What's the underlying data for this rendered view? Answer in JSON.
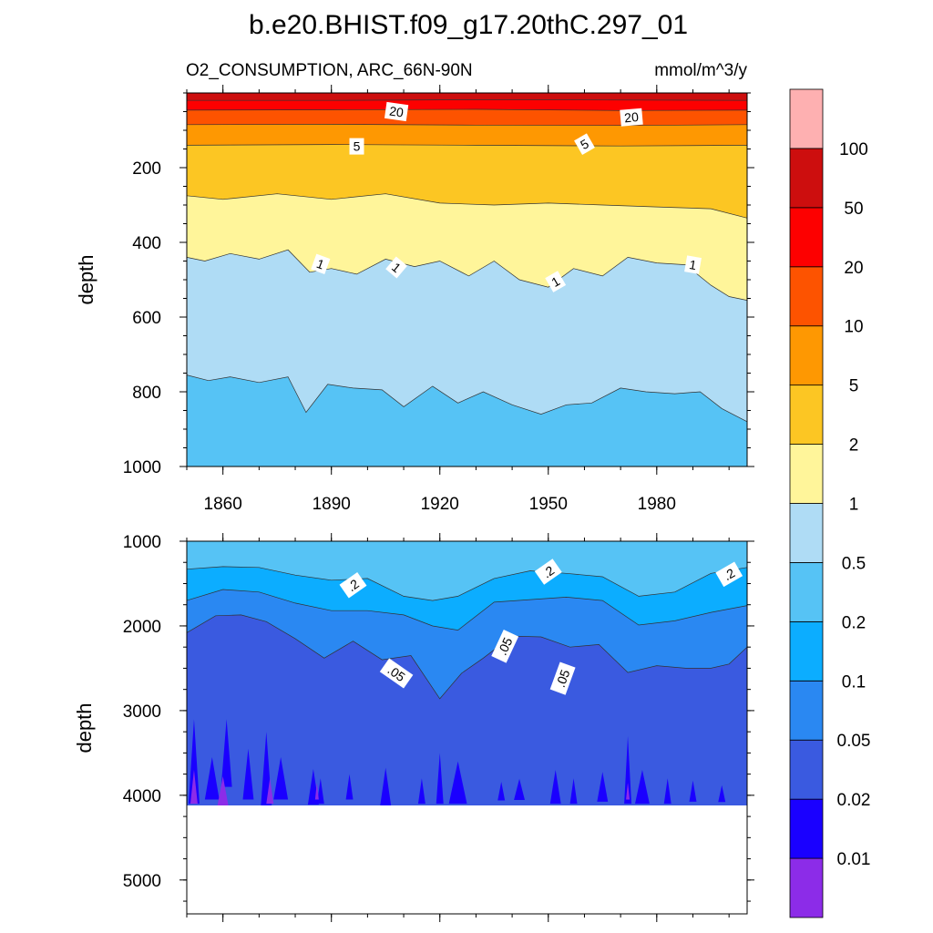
{
  "chart_data": {
    "type": "filled-contour",
    "title": "b.e20.BHIST.f09_g17.20thC.297_01",
    "subtitle_left": "O2_CONSUMPTION, ARC_66N-90N",
    "subtitle_right": "mmol/m^3/y",
    "xlim": [
      1850,
      2005
    ],
    "x_ticks": [
      1860,
      1890,
      1920,
      1950,
      1980
    ],
    "x_tick_labels": [
      "1860",
      "1890",
      "1920",
      "1950",
      "1980"
    ],
    "colorbar": {
      "colors": [
        "#8c2ce8",
        "#1a00ff",
        "#3a5ae0",
        "#2a88f2",
        "#0cadff",
        "#56c3f5",
        "#afdcf5",
        "#fff59a",
        "#fcc623",
        "#fe9802",
        "#fd5300",
        "#fd0000",
        "#cd0e0e",
        "#feb0b1"
      ],
      "levels": [
        "0.01",
        "0.02",
        "0.05",
        "0.1",
        "0.2",
        "0.5",
        "1",
        "2",
        "5",
        "10",
        "20",
        "50",
        "100"
      ]
    },
    "panels": [
      {
        "ylabel": "depth",
        "ylim": [
          0,
          1000
        ],
        "y_ticks": [
          200,
          400,
          600,
          800,
          1000
        ],
        "y_tick_labels": [
          "200",
          "400",
          "600",
          "800",
          "1000"
        ],
        "bottom_fill": "#56c3f5",
        "bands": [
          {
            "level": 50,
            "fill": "#fd0000",
            "years": [
              1850,
              1890,
              1930,
              1970,
              2005
            ],
            "depths": [
              20,
              20,
              18,
              19,
              20
            ]
          },
          {
            "level": 20,
            "fill": "#fd5300",
            "years": [
              1850,
              1890,
              1930,
              1970,
              2005
            ],
            "depths": [
              46,
              45,
              44,
              47,
              46
            ]
          },
          {
            "level": 10,
            "fill": "#fe9802",
            "years": [
              1850,
              1890,
              1930,
              1970,
              2005
            ],
            "depths": [
              85,
              84,
              86,
              87,
              85
            ]
          },
          {
            "level": 5,
            "fill": "#fcc623",
            "years": [
              1850,
              1890,
              1930,
              1970,
              2005
            ],
            "depths": [
              140,
              138,
              140,
              142,
              140
            ]
          },
          {
            "level": 2,
            "fill": "#fff59a",
            "years": [
              1850,
              1860,
              1875,
              1890,
              1905,
              1920,
              1935,
              1950,
              1965,
              1980,
              1995,
              2005
            ],
            "depths": [
              275,
              285,
              270,
              285,
              270,
              295,
              300,
              295,
              300,
              305,
              310,
              335
            ]
          },
          {
            "level": 1,
            "fill": "#afdcf5",
            "years": [
              1850,
              1855,
              1862,
              1870,
              1878,
              1884,
              1890,
              1897,
              1905,
              1913,
              1920,
              1928,
              1935,
              1942,
              1950,
              1957,
              1965,
              1972,
              1980,
              1988,
              1995,
              2000,
              2005
            ],
            "depths": [
              440,
              450,
              430,
              445,
              420,
              480,
              470,
              485,
              445,
              465,
              450,
              490,
              450,
              500,
              520,
              470,
              490,
              440,
              455,
              460,
              515,
              545,
              555
            ]
          },
          {
            "level": 0.5,
            "fill": "#56c3f5",
            "years": [
              1850,
              1856,
              1862,
              1870,
              1878,
              1883,
              1889,
              1896,
              1904,
              1910,
              1918,
              1925,
              1932,
              1940,
              1948,
              1955,
              1962,
              1970,
              1977,
              1985,
              1992,
              1998,
              2005
            ],
            "depths": [
              755,
              770,
              760,
              775,
              760,
              855,
              780,
              790,
              795,
              840,
              785,
              830,
              800,
              835,
              860,
              835,
              830,
              790,
              800,
              805,
              800,
              845,
              880
            ]
          }
        ],
        "labels": [
          {
            "text": "20",
            "year": 1908,
            "depth": 50,
            "angle": 8
          },
          {
            "text": "20",
            "year": 1973,
            "depth": 65,
            "angle": -5
          },
          {
            "text": "5",
            "year": 1897,
            "depth": 143,
            "angle": 0
          },
          {
            "text": "5",
            "year": 1960,
            "depth": 137,
            "angle": -30
          },
          {
            "text": "1",
            "year": 1887,
            "depth": 458,
            "angle": 20
          },
          {
            "text": "1",
            "year": 1908,
            "depth": 467,
            "angle": 40
          },
          {
            "text": "1",
            "year": 1952,
            "depth": 505,
            "angle": -30
          },
          {
            "text": "1",
            "year": 1990,
            "depth": 460,
            "angle": 10
          }
        ]
      },
      {
        "ylabel": "depth",
        "ylim": [
          1000,
          5400
        ],
        "y_ticks": [
          1000,
          2000,
          3000,
          4000,
          5000
        ],
        "y_tick_labels": [
          "1000",
          "2000",
          "3000",
          "4000",
          "5000"
        ],
        "bottom_depth": 4120,
        "bottom_fill": "#3a5ae0",
        "top_fill": "#56c3f5",
        "bands": [
          {
            "level": 0.2,
            "fill": "#0cadff",
            "years": [
              1850,
              1860,
              1870,
              1880,
              1890,
              1900,
              1910,
              1918,
              1925,
              1935,
              1945,
              1955,
              1965,
              1975,
              1985,
              1995,
              2005
            ],
            "depths": [
              1330,
              1300,
              1310,
              1400,
              1460,
              1440,
              1650,
              1700,
              1650,
              1440,
              1350,
              1380,
              1420,
              1650,
              1600,
              1380,
              1310
            ]
          },
          {
            "level": 0.1,
            "fill": "#2a88f2",
            "years": [
              1850,
              1860,
              1870,
              1880,
              1890,
              1900,
              1910,
              1918,
              1925,
              1935,
              1945,
              1955,
              1965,
              1975,
              1985,
              1995,
              2005
            ],
            "depths": [
              1700,
              1570,
              1600,
              1730,
              1820,
              1820,
              1870,
              2000,
              2050,
              1720,
              1690,
              1660,
              1700,
              1990,
              1940,
              1840,
              1760
            ]
          },
          {
            "level": 0.05,
            "fill": "#3a5ae0",
            "years": [
              1850,
              1858,
              1865,
              1872,
              1880,
              1888,
              1896,
              1904,
              1912,
              1920,
              1926,
              1932,
              1940,
              1948,
              1956,
              1964,
              1972,
              1980,
              1988,
              1995,
              2000,
              2005
            ],
            "depths": [
              2080,
              1880,
              1870,
              1950,
              2150,
              2380,
              2180,
              2400,
              2350,
              2860,
              2560,
              2380,
              2120,
              2130,
              2250,
              2220,
              2550,
              2470,
              2500,
              2500,
              2450,
              2250
            ]
          }
        ],
        "blobs": [
          {
            "year": 1852,
            "depth": 3600,
            "w": 3,
            "h": 1000,
            "fill": "#1a00ff"
          },
          {
            "year": 1857,
            "depth": 3800,
            "w": 4,
            "h": 500,
            "fill": "#1a00ff"
          },
          {
            "year": 1861,
            "depth": 3500,
            "w": 3,
            "h": 800,
            "fill": "#1a00ff"
          },
          {
            "year": 1867,
            "depth": 3750,
            "w": 3,
            "h": 600,
            "fill": "#1a00ff"
          },
          {
            "year": 1872,
            "depth": 3700,
            "w": 3,
            "h": 900,
            "fill": "#1a00ff"
          },
          {
            "year": 1876,
            "depth": 3800,
            "w": 4,
            "h": 500,
            "fill": "#1a00ff"
          },
          {
            "year": 1885,
            "depth": 3900,
            "w": 3,
            "h": 420,
            "fill": "#1a00ff"
          },
          {
            "year": 1887,
            "depth": 3950,
            "w": 2,
            "h": 300,
            "fill": "#1a00ff"
          },
          {
            "year": 1895,
            "depth": 3900,
            "w": 2,
            "h": 300,
            "fill": "#1a00ff"
          },
          {
            "year": 1905,
            "depth": 3900,
            "w": 3,
            "h": 450,
            "fill": "#1a00ff"
          },
          {
            "year": 1915,
            "depth": 3950,
            "w": 2,
            "h": 300,
            "fill": "#1a00ff"
          },
          {
            "year": 1920,
            "depth": 3800,
            "w": 2,
            "h": 600,
            "fill": "#1a00ff"
          },
          {
            "year": 1925,
            "depth": 3850,
            "w": 5,
            "h": 500,
            "fill": "#1a00ff"
          },
          {
            "year": 1937,
            "depth": 3950,
            "w": 2,
            "h": 220,
            "fill": "#1a00ff"
          },
          {
            "year": 1942,
            "depth": 3930,
            "w": 3,
            "h": 250,
            "fill": "#1a00ff"
          },
          {
            "year": 1952,
            "depth": 3900,
            "w": 3,
            "h": 400,
            "fill": "#1a00ff"
          },
          {
            "year": 1957,
            "depth": 3950,
            "w": 2,
            "h": 300,
            "fill": "#1a00ff"
          },
          {
            "year": 1965,
            "depth": 3900,
            "w": 3,
            "h": 350,
            "fill": "#1a00ff"
          },
          {
            "year": 1972,
            "depth": 3700,
            "w": 2,
            "h": 800,
            "fill": "#1a00ff"
          },
          {
            "year": 1976,
            "depth": 3900,
            "w": 4,
            "h": 400,
            "fill": "#1a00ff"
          },
          {
            "year": 1983,
            "depth": 3950,
            "w": 2,
            "h": 300,
            "fill": "#1a00ff"
          },
          {
            "year": 1990,
            "depth": 3950,
            "w": 2,
            "h": 250,
            "fill": "#1a00ff"
          },
          {
            "year": 1998,
            "depth": 3980,
            "w": 2,
            "h": 200,
            "fill": "#1a00ff"
          },
          {
            "year": 1852,
            "depth": 3900,
            "w": 2,
            "h": 400,
            "fill": "#8c2ce8"
          },
          {
            "year": 1860,
            "depth": 3950,
            "w": 3,
            "h": 350,
            "fill": "#8c2ce8"
          },
          {
            "year": 1873,
            "depth": 3950,
            "w": 2,
            "h": 300,
            "fill": "#8c2ce8"
          },
          {
            "year": 1886,
            "depth": 3950,
            "w": 1,
            "h": 200,
            "fill": "#8c2ce8"
          },
          {
            "year": 1972,
            "depth": 3950,
            "w": 1,
            "h": 200,
            "fill": "#8c2ce8"
          }
        ],
        "labels": [
          {
            "text": ".2",
            "year": 1896,
            "depth": 1520,
            "angle": -35
          },
          {
            "text": ".2",
            "year": 1950,
            "depth": 1360,
            "angle": -35
          },
          {
            "text": ".2",
            "year": 2000,
            "depth": 1390,
            "angle": -30
          },
          {
            "text": ".05",
            "year": 1908,
            "depth": 2560,
            "angle": 35
          },
          {
            "text": ".05",
            "year": 1938,
            "depth": 2240,
            "angle": -65
          },
          {
            "text": ".05",
            "year": 1954,
            "depth": 2620,
            "angle": -70
          }
        ]
      }
    ]
  }
}
